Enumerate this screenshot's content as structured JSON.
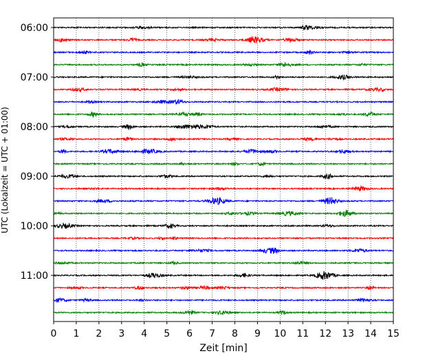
{
  "chart_data": {
    "type": "line",
    "title": "",
    "xlabel": "Zeit  [min]",
    "ylabel": "UTC (Lokalzeit = UTC + 01:00)",
    "xlim": [
      0,
      15
    ],
    "x_ticks": [
      "0",
      "1",
      "2",
      "3",
      "4",
      "5",
      "6",
      "7",
      "8",
      "9",
      "10",
      "11",
      "12",
      "13",
      "14",
      "15"
    ],
    "y_tick_labels": [
      "06:00",
      "07:00",
      "08:00",
      "09:00",
      "10:00",
      "11:00"
    ],
    "grid": "vertical-dotted",
    "legend": "none",
    "trace_interval_min": 15,
    "start_time": "06:00",
    "traces": [
      {
        "time": "06:00",
        "color": "#000000"
      },
      {
        "time": "06:15",
        "color": "#ff0000"
      },
      {
        "time": "06:30",
        "color": "#0000ff"
      },
      {
        "time": "06:45",
        "color": "#008000"
      },
      {
        "time": "07:00",
        "color": "#000000"
      },
      {
        "time": "07:15",
        "color": "#ff0000"
      },
      {
        "time": "07:30",
        "color": "#0000ff"
      },
      {
        "time": "07:45",
        "color": "#008000"
      },
      {
        "time": "08:00",
        "color": "#000000"
      },
      {
        "time": "08:15",
        "color": "#ff0000"
      },
      {
        "time": "08:30",
        "color": "#0000ff"
      },
      {
        "time": "08:45",
        "color": "#008000"
      },
      {
        "time": "09:00",
        "color": "#000000"
      },
      {
        "time": "09:15",
        "color": "#ff0000"
      },
      {
        "time": "09:30",
        "color": "#0000ff"
      },
      {
        "time": "09:45",
        "color": "#008000"
      },
      {
        "time": "10:00",
        "color": "#000000"
      },
      {
        "time": "10:15",
        "color": "#ff0000"
      },
      {
        "time": "10:30",
        "color": "#0000ff"
      },
      {
        "time": "10:45",
        "color": "#008000"
      },
      {
        "time": "11:00",
        "color": "#000000"
      },
      {
        "time": "11:15",
        "color": "#ff0000"
      },
      {
        "time": "11:30",
        "color": "#0000ff"
      },
      {
        "time": "11:45",
        "color": "#008000"
      }
    ]
  }
}
